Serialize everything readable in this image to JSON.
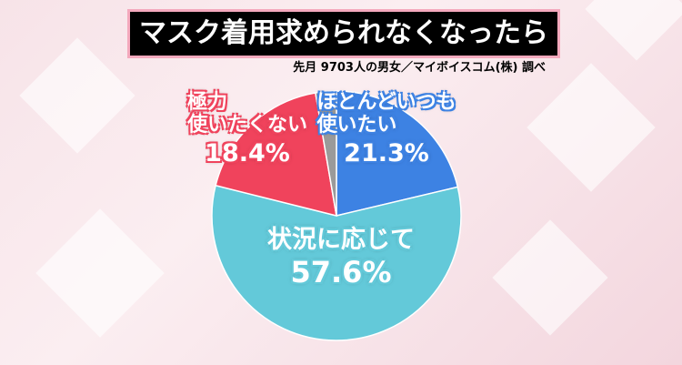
{
  "chart_data": {
    "type": "pie",
    "title": "マスク着用求められなくなったら",
    "subtitle": "先月 9703人の男女／マイボイスコム(株) 調べ",
    "categories": [
      "ほとんどいつも\n使いたい",
      "状況に応じて",
      "極力\n使いたくない",
      null
    ],
    "values": [
      21.3,
      57.6,
      18.4,
      2.7
    ],
    "value_labels": [
      "21.3%",
      "57.6%",
      "18.4%",
      null
    ],
    "colors": [
      "#3d82e3",
      "#63c9d9",
      "#f0435c",
      "#9a9a9a"
    ]
  }
}
